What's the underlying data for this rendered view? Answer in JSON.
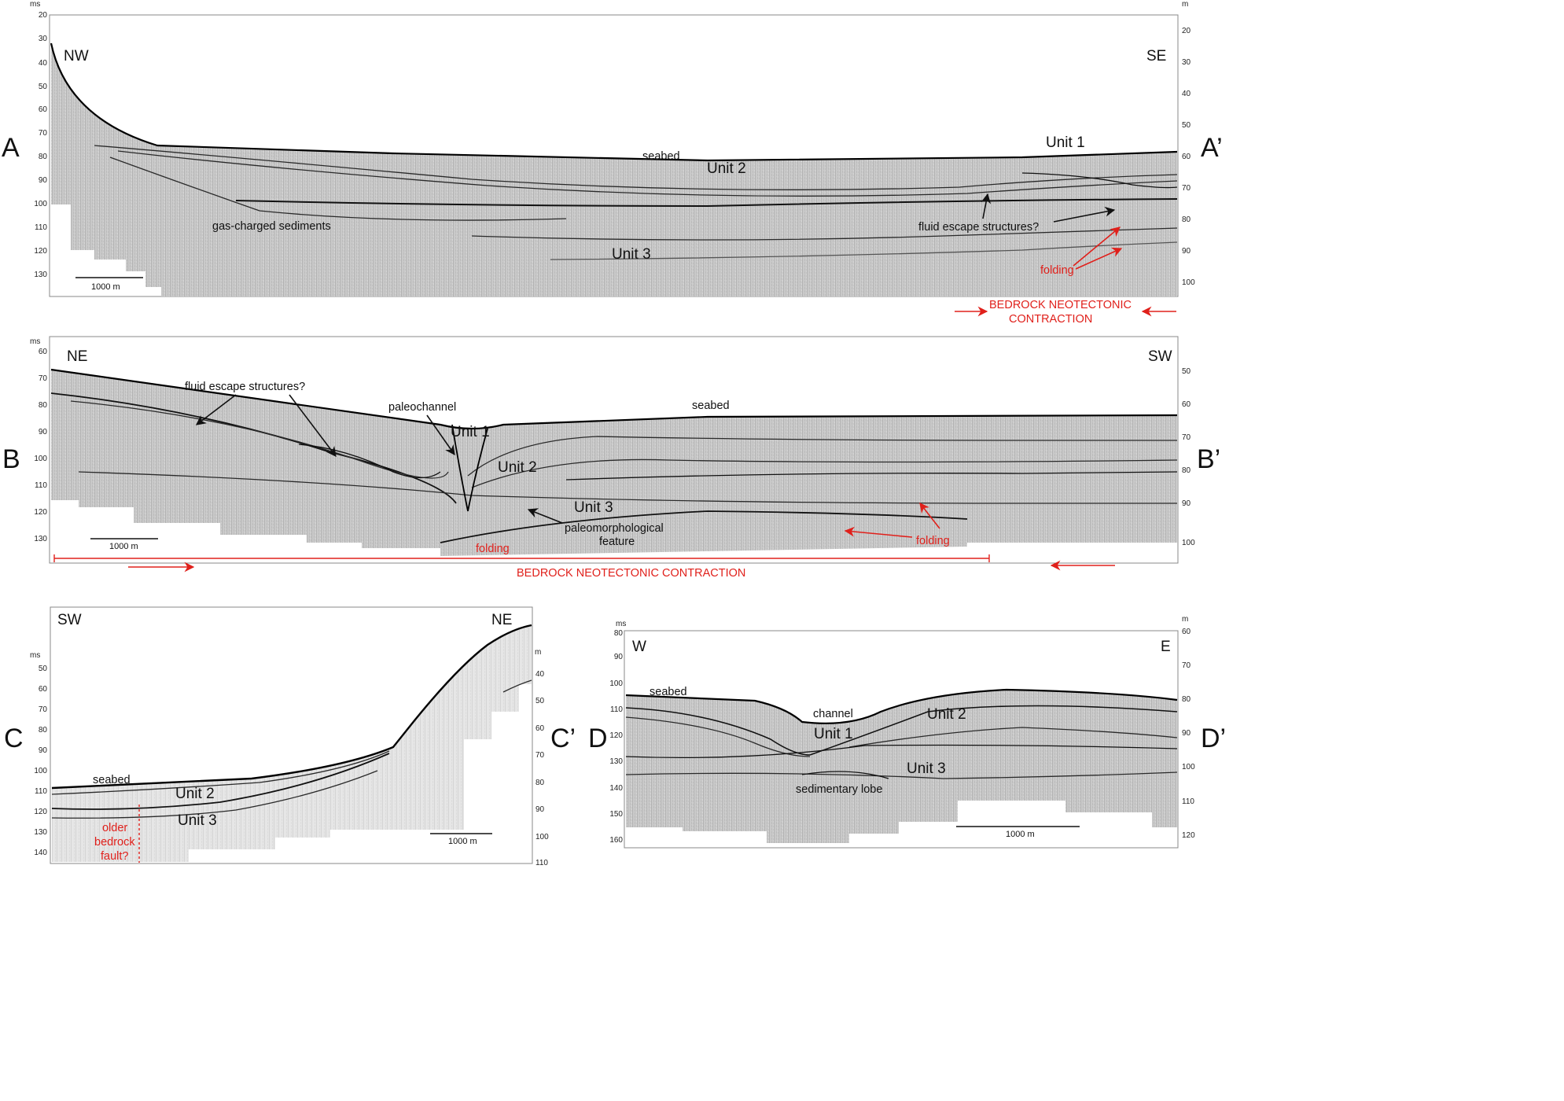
{
  "panel_a": {
    "start_letter": "A",
    "end_letter": "A’",
    "dir_left": "NW",
    "dir_right": "SE",
    "left_unit": "ms",
    "right_unit": "m",
    "left_ticks": [
      "20",
      "30",
      "40",
      "50",
      "60",
      "70",
      "80",
      "90",
      "100",
      "110",
      "120",
      "130"
    ],
    "right_ticks": [
      "20",
      "30",
      "40",
      "50",
      "60",
      "70",
      "80",
      "90",
      "100"
    ],
    "labels": {
      "seabed": "seabed",
      "unit1": "Unit 1",
      "unit2": "Unit 2",
      "unit3": "Unit 3",
      "gas": "gas-charged sediments",
      "fluid": "fluid escape structures?",
      "folding": "folding",
      "scale": "1000 m",
      "bedrock_line1": "BEDROCK NEOTECTONIC",
      "bedrock_line2": "CONTRACTION"
    }
  },
  "panel_b": {
    "start_letter": "B",
    "end_letter": "B’",
    "dir_left": "NE",
    "dir_right": "SW",
    "left_unit": "ms",
    "left_ticks": [
      "60",
      "70",
      "80",
      "90",
      "100",
      "110",
      "120",
      "130"
    ],
    "right_ticks": [
      "50",
      "60",
      "70",
      "80",
      "90",
      "100"
    ],
    "labels": {
      "seabed": "seabed",
      "unit1": "Unit 1",
      "unit2": "Unit 2",
      "unit3": "Unit 3",
      "fluid": "fluid escape structures?",
      "paleochannel": "paleochannel",
      "paleo1": "paleomorphological",
      "paleo2": "feature",
      "folding": "folding",
      "scale": "1000 m",
      "bedrock": "BEDROCK NEOTECTONIC CONTRACTION"
    }
  },
  "panel_c": {
    "start_letter": "C",
    "end_letter": "C’",
    "dir_left": "SW",
    "dir_right": "NE",
    "left_unit": "ms",
    "right_unit": "m",
    "left_ticks": [
      "50",
      "60",
      "70",
      "80",
      "90",
      "100",
      "110",
      "120",
      "130",
      "140"
    ],
    "right_ticks": [
      "40",
      "50",
      "60",
      "70",
      "80",
      "90",
      "100",
      "110"
    ],
    "labels": {
      "seabed": "seabed",
      "unit2": "Unit 2",
      "unit3": "Unit 3",
      "scale": "1000 m",
      "fault1": "older",
      "fault2": "bedrock",
      "fault3": "fault?"
    }
  },
  "panel_d": {
    "start_letter": "D",
    "end_letter": "D’",
    "dir_left": "W",
    "dir_right": "E",
    "left_unit": "ms",
    "right_unit": "m",
    "left_ticks": [
      "80",
      "90",
      "100",
      "110",
      "120",
      "130",
      "140",
      "150",
      "160"
    ],
    "right_ticks": [
      "60",
      "70",
      "80",
      "90",
      "100",
      "110",
      "120"
    ],
    "labels": {
      "seabed": "seabed",
      "channel": "channel",
      "unit1": "Unit 1",
      "unit2": "Unit 2",
      "unit3": "Unit 3",
      "lobe": "sedimentary lobe",
      "scale": "1000 m"
    }
  },
  "colors": {
    "annotation_red": "#e0201b",
    "ink": "#111111",
    "panel_border": "#888888"
  }
}
